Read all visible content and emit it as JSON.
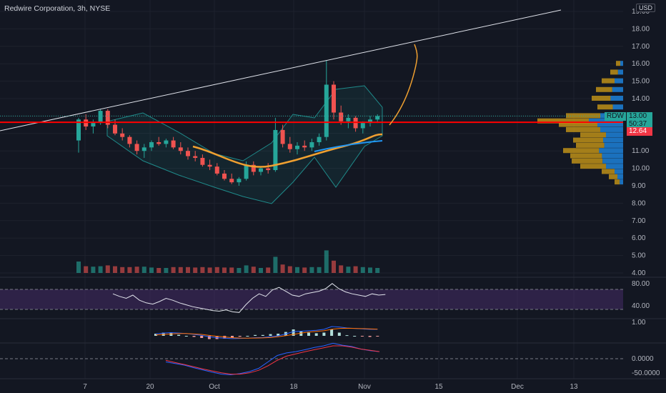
{
  "symbol": {
    "title": "Redwire Corporation, 3h, NYSE",
    "ticker": "RDW",
    "currency": "USD",
    "last_price": "13.00",
    "countdown": "50:37",
    "line_price": "12.64"
  },
  "price_axis": {
    "ticks": [
      "19.00",
      "18.00",
      "17.00",
      "16.00",
      "15.00",
      "14.00",
      "13.00",
      "12.00",
      "11.00",
      "10.00",
      "9.00",
      "8.00",
      "7.00",
      "6.00",
      "5.00",
      "4.00"
    ]
  },
  "rsi_axis": {
    "ticks": [
      "80.00",
      "40.00"
    ]
  },
  "macd_axis": {
    "ticks": [
      "1.00"
    ]
  },
  "osc_axis": {
    "ticks": [
      "0.0000",
      "-50.0000"
    ]
  },
  "time_axis": {
    "ticks": [
      "7",
      "20",
      "Oct",
      "18",
      "Nov",
      "15",
      "Dec",
      "13"
    ]
  },
  "colors": {
    "background": "#131722",
    "up": "#26a69a",
    "down": "#ef5350",
    "horizontal_line": "#ff0000",
    "trendline": "#e0e3eb",
    "ma_orange": "#f0a030",
    "ma_blue": "#2196f3",
    "bollinger": "#1f8a8a",
    "rsi_band": "#4a2d6b"
  },
  "chart_data": {
    "type": "candlestick",
    "title": "Redwire Corporation, 3h, NYSE",
    "ylim": [
      4,
      19.5
    ],
    "horizontal_line": 12.64,
    "last_price": 13.0,
    "candles": [
      [
        11.6,
        12.9,
        10.9,
        12.8
      ],
      [
        12.8,
        13.1,
        12.2,
        12.4
      ],
      [
        12.4,
        12.8,
        12.0,
        12.6
      ],
      [
        12.6,
        13.4,
        12.5,
        13.3
      ],
      [
        13.3,
        13.4,
        12.3,
        12.5
      ],
      [
        12.5,
        12.8,
        11.9,
        12.0
      ],
      [
        12.0,
        12.3,
        11.6,
        11.8
      ],
      [
        11.8,
        11.9,
        11.2,
        11.4
      ],
      [
        11.4,
        11.6,
        10.8,
        11.0
      ],
      [
        11.0,
        11.4,
        10.6,
        11.2
      ],
      [
        11.2,
        11.6,
        11.0,
        11.5
      ],
      [
        11.5,
        11.8,
        11.3,
        11.4
      ],
      [
        11.4,
        11.7,
        11.2,
        11.6
      ],
      [
        11.6,
        11.8,
        11.1,
        11.2
      ],
      [
        11.2,
        11.5,
        10.8,
        11.0
      ],
      [
        11.0,
        11.2,
        10.5,
        10.7
      ],
      [
        10.7,
        11.0,
        10.4,
        10.6
      ],
      [
        10.6,
        10.8,
        10.1,
        10.2
      ],
      [
        10.2,
        10.5,
        9.9,
        10.1
      ],
      [
        10.1,
        10.3,
        9.6,
        9.7
      ],
      [
        9.7,
        9.9,
        9.3,
        9.4
      ],
      [
        9.4,
        9.7,
        9.1,
        9.2
      ],
      [
        9.2,
        9.5,
        9.0,
        9.4
      ],
      [
        9.4,
        10.4,
        9.3,
        10.2
      ],
      [
        10.2,
        10.4,
        9.6,
        9.8
      ],
      [
        9.8,
        10.1,
        9.6,
        10.0
      ],
      [
        10.0,
        10.3,
        9.7,
        9.9
      ],
      [
        9.9,
        12.9,
        9.8,
        12.2
      ],
      [
        12.2,
        12.5,
        11.2,
        11.4
      ],
      [
        11.4,
        11.8,
        10.9,
        11.1
      ],
      [
        11.1,
        11.5,
        10.8,
        11.3
      ],
      [
        11.3,
        11.6,
        11.0,
        11.2
      ],
      [
        11.2,
        11.7,
        11.0,
        11.5
      ],
      [
        11.5,
        12.0,
        11.3,
        11.8
      ],
      [
        11.8,
        16.2,
        11.6,
        14.8
      ],
      [
        14.8,
        15.0,
        12.8,
        13.2
      ],
      [
        13.2,
        13.6,
        12.5,
        12.7
      ],
      [
        12.7,
        13.1,
        12.3,
        12.9
      ],
      [
        12.9,
        13.0,
        12.1,
        12.3
      ],
      [
        12.3,
        12.7,
        12.0,
        12.6
      ],
      [
        12.6,
        13.0,
        12.4,
        12.8
      ],
      [
        12.8,
        13.1,
        12.6,
        13.0
      ]
    ]
  },
  "rsi_data": [
    62,
    58,
    55,
    60,
    52,
    48,
    46,
    50,
    55,
    52,
    48,
    45,
    42,
    40,
    38,
    36,
    35,
    37,
    34,
    33,
    45,
    55,
    62,
    58,
    68,
    72,
    66,
    60,
    58,
    62,
    64,
    66,
    70,
    78,
    70,
    65,
    62,
    60,
    58,
    62,
    60,
    61
  ],
  "macd_line": [
    0.2,
    0.3,
    0.35,
    0.3,
    0.25,
    0.15,
    0.05,
    -0.1,
    -0.2,
    -0.25,
    -0.3,
    -0.28,
    -0.25,
    -0.2,
    -0.18,
    -0.1,
    0.0,
    0.2,
    0.45,
    0.5,
    0.55,
    0.6,
    0.7,
    1.0,
    0.95,
    0.85,
    0.8,
    0.75,
    0.7,
    0.7
  ],
  "signal_line": [
    0.1,
    0.15,
    0.2,
    0.25,
    0.25,
    0.2,
    0.15,
    0.05,
    -0.05,
    -0.12,
    -0.2,
    -0.24,
    -0.25,
    -0.24,
    -0.22,
    -0.18,
    -0.1,
    0.02,
    0.15,
    0.3,
    0.4,
    0.48,
    0.55,
    0.7,
    0.8,
    0.82,
    0.8,
    0.78,
    0.75,
    0.72
  ],
  "osc_line": [
    -10,
    -15,
    -20,
    -28,
    -35,
    -42,
    -48,
    -50,
    -46,
    -40,
    -30,
    -10,
    10,
    18,
    22,
    28,
    35,
    40,
    48,
    42,
    38,
    30,
    25,
    22
  ],
  "osc_signal": [
    -5,
    -12,
    -18,
    -25,
    -32,
    -38,
    -44,
    -48,
    -48,
    -44,
    -36,
    -22,
    -5,
    8,
    15,
    22,
    28,
    34,
    40,
    40,
    36,
    30,
    26,
    22
  ]
}
